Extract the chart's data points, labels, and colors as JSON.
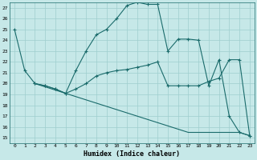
{
  "xlabel": "Humidex (Indice chaleur)",
  "bg_color": "#c6e8e8",
  "grid_color": "#9ecece",
  "line_color": "#1a6b6b",
  "xlim": [
    -0.5,
    23.5
  ],
  "ylim": [
    14.5,
    27.5
  ],
  "xticks": [
    0,
    1,
    2,
    3,
    4,
    5,
    6,
    7,
    8,
    9,
    10,
    11,
    12,
    13,
    14,
    15,
    16,
    17,
    18,
    19,
    20,
    21,
    22,
    23
  ],
  "yticks": [
    15,
    16,
    17,
    18,
    19,
    20,
    21,
    22,
    23,
    24,
    25,
    26,
    27
  ],
  "line1_x": [
    0,
    1,
    2,
    3,
    4,
    5,
    6,
    7,
    8,
    9,
    10,
    11,
    12,
    13,
    14,
    15,
    16,
    17,
    18,
    19,
    20,
    21,
    22,
    23
  ],
  "line1_y": [
    25.0,
    21.2,
    20.0,
    19.8,
    19.5,
    19.1,
    21.2,
    23.0,
    24.5,
    25.0,
    26.0,
    27.2,
    27.5,
    27.3,
    27.3,
    23.0,
    24.1,
    24.1,
    24.0,
    19.8,
    22.2,
    17.0,
    15.5,
    15.2
  ],
  "line2_x": [
    2,
    3,
    4,
    5,
    6,
    7,
    8,
    9,
    10,
    11,
    12,
    13,
    14,
    15,
    16,
    17,
    18,
    19,
    20,
    21,
    22,
    23
  ],
  "line2_y": [
    20.0,
    19.8,
    19.5,
    19.1,
    19.5,
    20.0,
    20.7,
    21.0,
    21.2,
    21.3,
    21.5,
    21.7,
    22.0,
    19.8,
    19.8,
    19.8,
    19.8,
    20.2,
    20.5,
    22.2,
    22.2,
    15.2
  ],
  "line3_x": [
    2,
    3,
    4,
    5,
    6,
    7,
    8,
    9,
    10,
    11,
    12,
    13,
    14,
    15,
    16,
    17,
    18,
    19,
    20,
    21,
    22,
    23
  ],
  "line3_y": [
    20.0,
    19.7,
    19.4,
    19.1,
    18.8,
    18.5,
    18.2,
    17.9,
    17.6,
    17.3,
    17.0,
    16.7,
    16.4,
    16.1,
    15.8,
    15.5,
    15.5,
    15.5,
    15.5,
    15.5,
    15.5,
    15.2
  ]
}
